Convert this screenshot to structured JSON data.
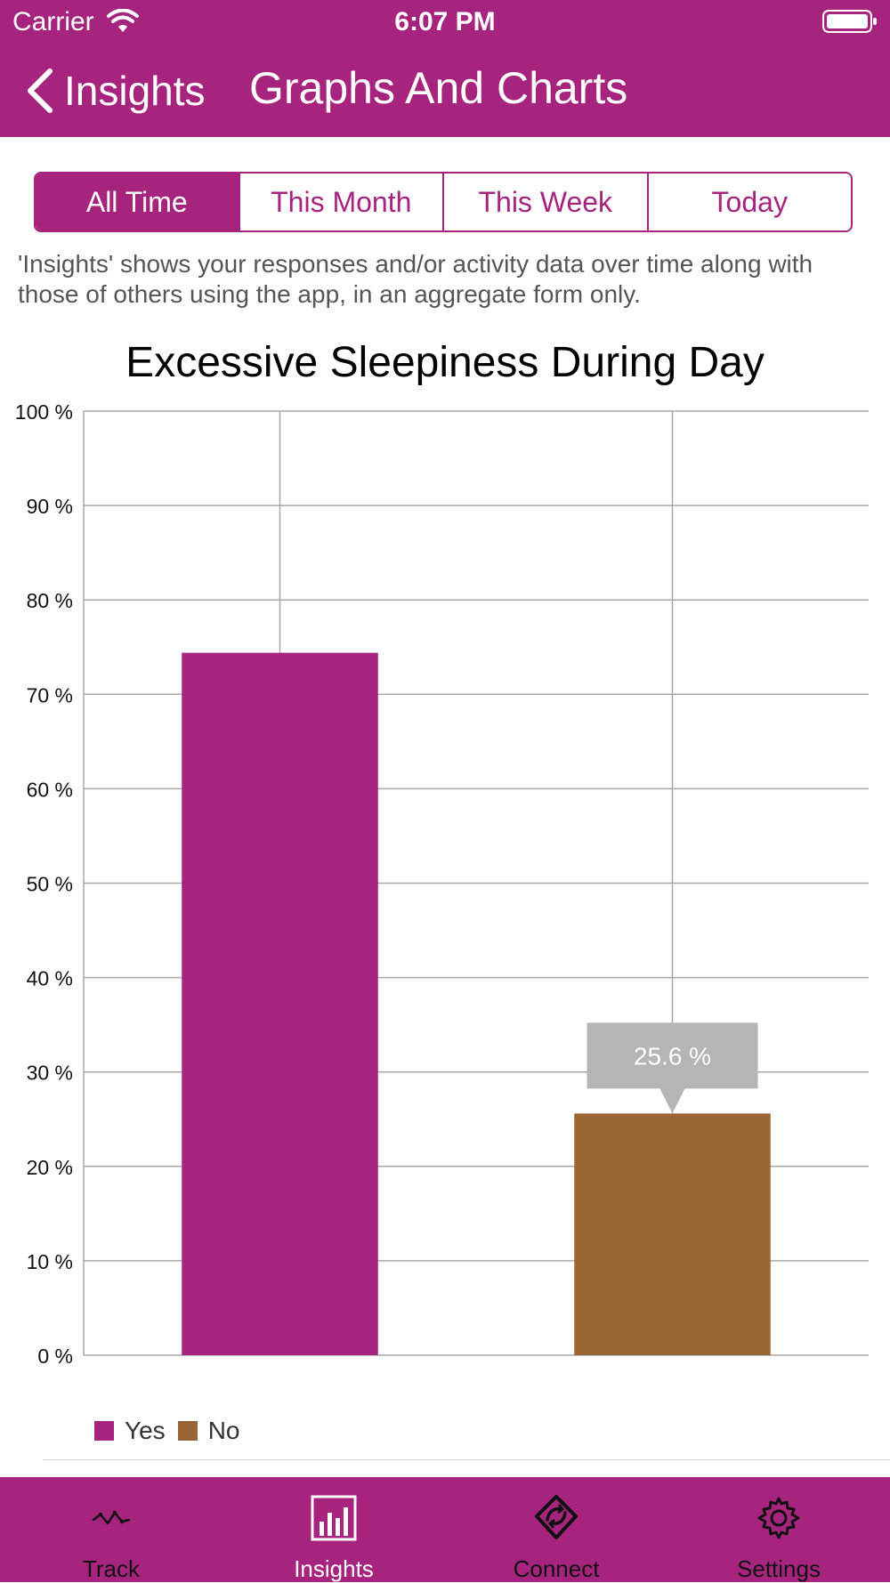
{
  "status_bar": {
    "carrier": "Carrier",
    "time": "6:07 PM"
  },
  "nav": {
    "back_label": "Insights",
    "title": "Graphs And Charts"
  },
  "segments": [
    {
      "label": "All Time",
      "active": true
    },
    {
      "label": "This Month",
      "active": false
    },
    {
      "label": "This Week",
      "active": false
    },
    {
      "label": "Today",
      "active": false
    }
  ],
  "intro_text": "'Insights' shows your responses and/or activity data over time along with those of others using the app, in an aggregate form only.",
  "chart_data": {
    "type": "bar",
    "title": "Excessive Sleepiness During Day",
    "categories": [
      "Yes",
      "No"
    ],
    "values": [
      74.4,
      25.6
    ],
    "colors": [
      "#a6247e",
      "#9a6633"
    ],
    "ylim": [
      0,
      100
    ],
    "yticks": [
      0,
      10,
      20,
      30,
      40,
      50,
      60,
      70,
      80,
      90,
      100
    ],
    "ytick_suffix": " %",
    "grid": true,
    "tooltip": {
      "category": "No",
      "label": "25.6 %"
    },
    "legend": [
      {
        "name": "Yes",
        "color": "#a6247e"
      },
      {
        "name": "No",
        "color": "#9a6633"
      }
    ]
  },
  "tabs": [
    {
      "label": "Track",
      "icon": "track-icon",
      "active": false
    },
    {
      "label": "Insights",
      "icon": "insights-icon",
      "active": true
    },
    {
      "label": "Connect",
      "icon": "connect-icon",
      "active": false
    },
    {
      "label": "Settings",
      "icon": "settings-icon",
      "active": false
    }
  ],
  "colors": {
    "brand": "#a6247e",
    "bar_no": "#9a6633",
    "tooltip_bg": "#b5b5b5"
  }
}
